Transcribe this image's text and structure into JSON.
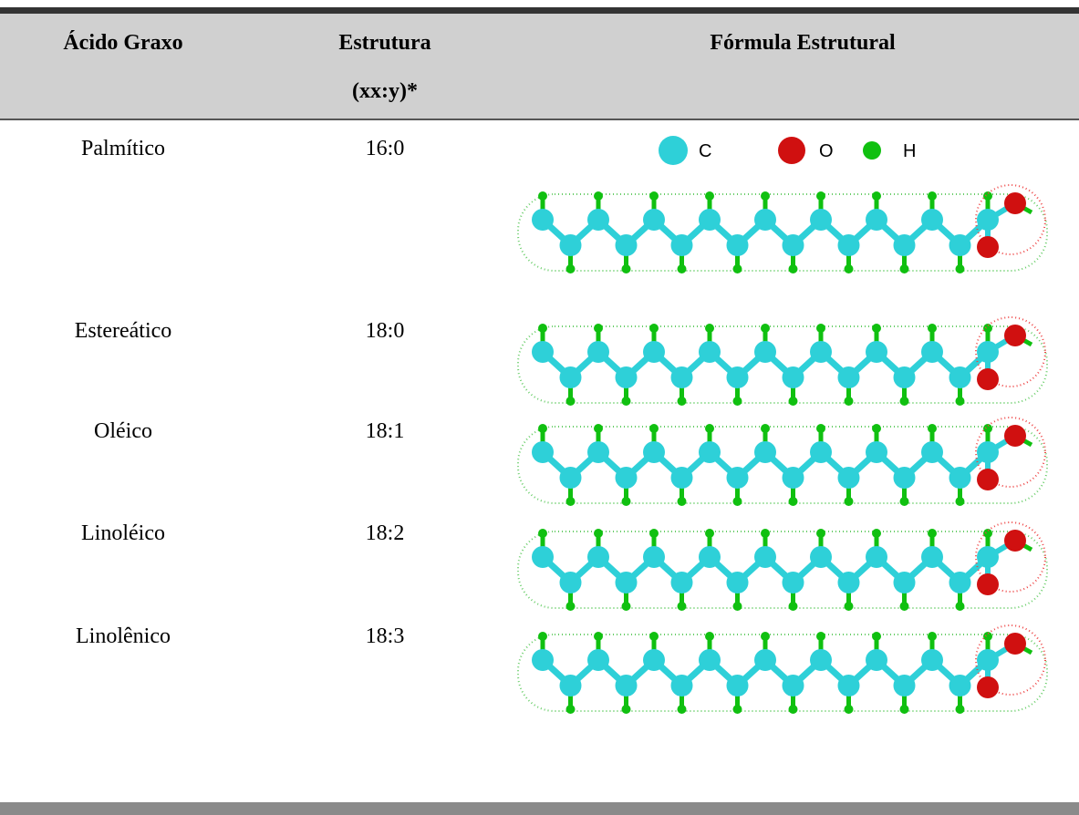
{
  "header": {
    "acid": "Ácido Graxo",
    "structure_line1": "Estrutura",
    "structure_line2": "(xx:y)*",
    "formula": "Fórmula Estrutural"
  },
  "legend": [
    "C",
    "O",
    "H"
  ],
  "rows": [
    {
      "name": "Palmítico",
      "structure": "16:0"
    },
    {
      "name": "Estereático",
      "structure": "18:0"
    },
    {
      "name": "Oléico",
      "structure": "18:1"
    },
    {
      "name": "Linoléico",
      "structure": "18:2"
    },
    {
      "name": "Linolênico",
      "structure": "18:3"
    }
  ]
}
